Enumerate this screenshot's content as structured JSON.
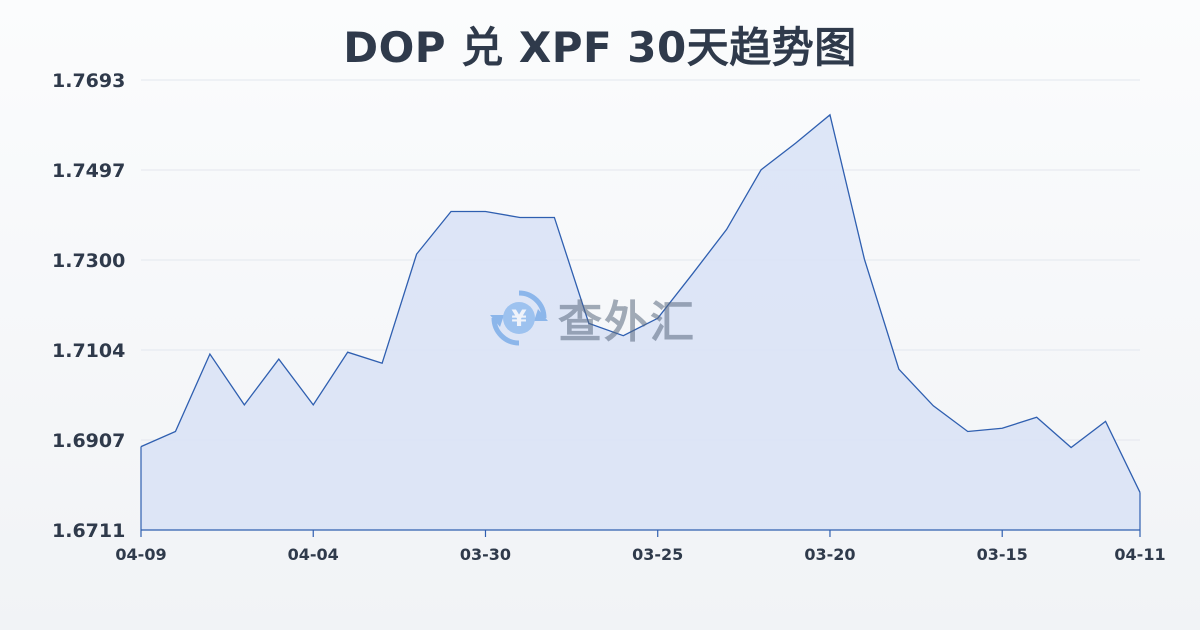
{
  "chart_data": {
    "type": "area",
    "title": "DOP 兑 XPF 30天趋势图",
    "xlabel": "",
    "ylabel": "",
    "ylim": [
      1.6711,
      1.7693
    ],
    "y_ticks": [
      "1.7693",
      "1.7497",
      "1.7300",
      "1.7104",
      "1.6907",
      "1.6711"
    ],
    "x_ticks": [
      "04-09",
      "04-04",
      "03-30",
      "03-25",
      "03-20",
      "03-15",
      "04-11"
    ],
    "x_tick_index": [
      0,
      5,
      10,
      15,
      20,
      25,
      29
    ],
    "grid": true,
    "colors": {
      "line": "#2f5fb0",
      "fill": "#d8e2f6"
    },
    "series": [
      {
        "values": [
          1.6893,
          1.6926,
          1.7095,
          1.6984,
          1.7084,
          1.6984,
          1.7099,
          1.7075,
          1.7313,
          1.7406,
          1.7406,
          1.7393,
          1.7393,
          1.7162,
          1.7135,
          1.7173,
          1.7269,
          1.7367,
          1.7497,
          1.7555,
          1.7617,
          1.7302,
          1.7062,
          1.6982,
          1.6926,
          1.6933,
          1.6957,
          1.6891,
          1.6948,
          1.6793
        ]
      }
    ]
  },
  "watermark": {
    "text": "查外汇",
    "icon": "yen-exchange-icon"
  }
}
